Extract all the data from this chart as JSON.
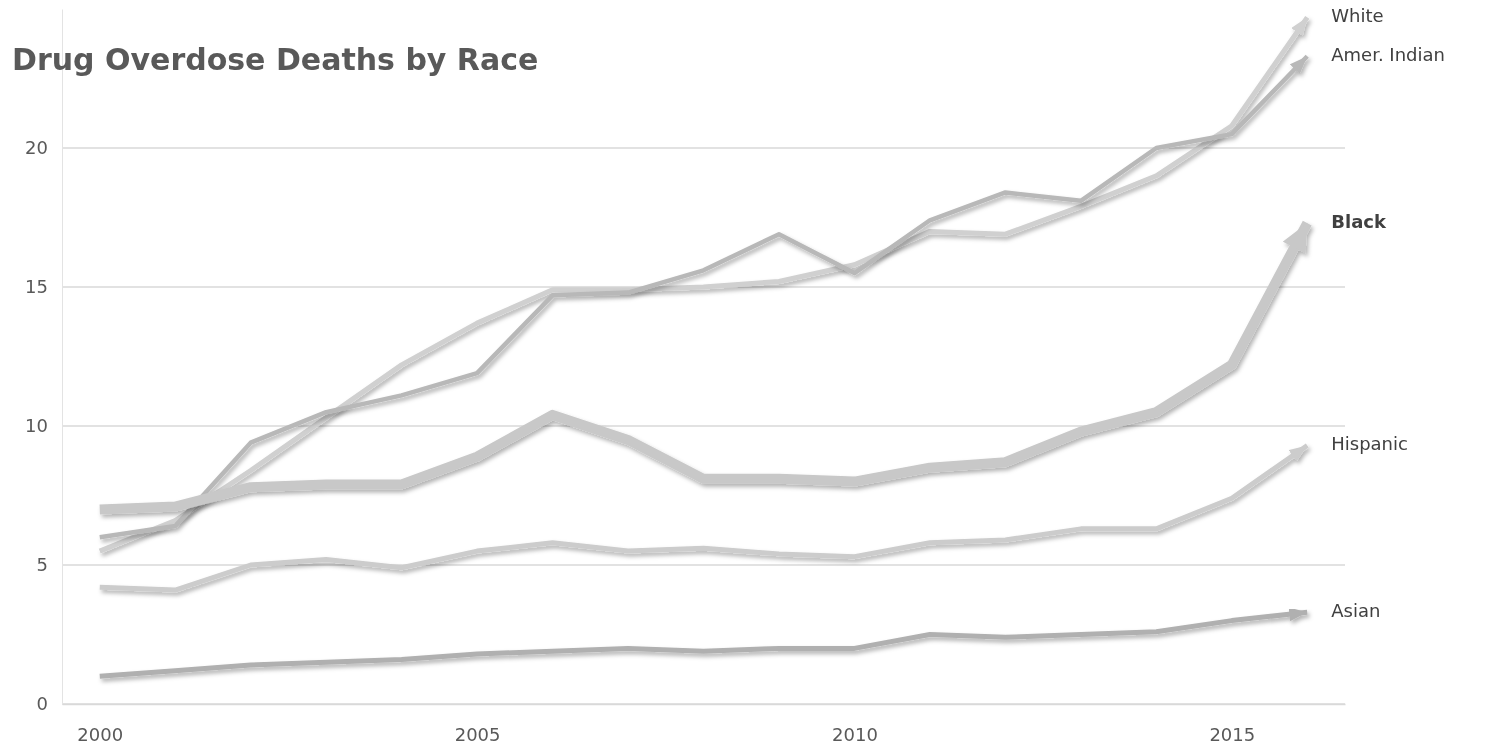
{
  "chart_data": {
    "type": "line",
    "title": "Drug Overdose Deaths by Race",
    "x": [
      2000,
      2001,
      2002,
      2003,
      2004,
      2005,
      2006,
      2007,
      2008,
      2009,
      2010,
      2011,
      2012,
      2013,
      2014,
      2015,
      2016
    ],
    "series": [
      {
        "name": "White",
        "color": "#d0d0d0",
        "values": [
          5.5,
          6.6,
          8.4,
          10.3,
          12.2,
          13.7,
          14.9,
          14.9,
          15.0,
          15.2,
          15.8,
          17.0,
          16.9,
          17.9,
          19.0,
          20.8,
          24.7
        ]
      },
      {
        "name": "Amer. Indian",
        "color": "#b8b8b8",
        "values": [
          6.0,
          6.4,
          9.4,
          10.5,
          11.1,
          11.9,
          14.7,
          14.8,
          15.6,
          16.9,
          15.5,
          17.4,
          18.4,
          18.1,
          20.0,
          20.5,
          23.3
        ]
      },
      {
        "name": "Black",
        "color": "#c8c8c8",
        "values": [
          7.0,
          7.1,
          7.8,
          7.9,
          7.9,
          8.9,
          10.4,
          9.5,
          8.1,
          8.1,
          8.0,
          8.5,
          8.7,
          9.8,
          10.5,
          12.2,
          17.3
        ]
      },
      {
        "name": "Hispanic",
        "color": "#cccccc",
        "values": [
          4.2,
          4.1,
          5.0,
          5.2,
          4.9,
          5.5,
          5.8,
          5.5,
          5.6,
          5.4,
          5.3,
          5.8,
          5.9,
          6.3,
          6.3,
          7.4,
          9.3
        ]
      },
      {
        "name": "Asian",
        "color": "#b0b0b0",
        "values": [
          1.0,
          1.2,
          1.4,
          1.5,
          1.6,
          1.8,
          1.9,
          2.0,
          1.9,
          2.0,
          2.0,
          2.5,
          2.4,
          2.5,
          2.6,
          3.0,
          3.3
        ]
      }
    ],
    "xlim": [
      1999.5,
      2016.5
    ],
    "xticks": [
      2000,
      2005,
      2010,
      2015
    ],
    "ylim": [
      0,
      25
    ],
    "yticks": [
      0,
      5,
      10,
      15,
      20
    ],
    "grid": "y"
  }
}
